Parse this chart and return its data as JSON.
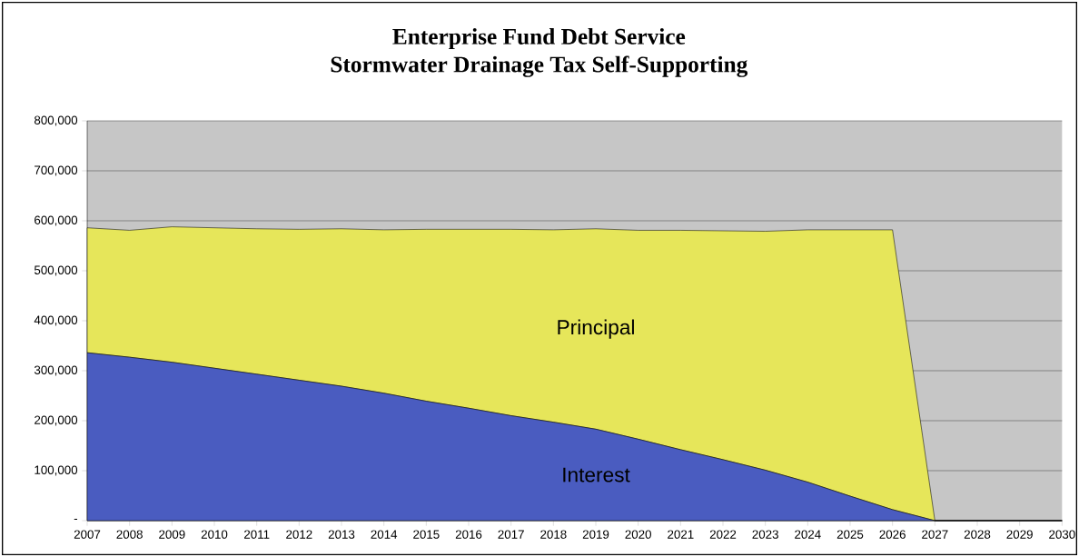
{
  "chart_data": {
    "type": "area",
    "stacked": true,
    "title": "Enterprise Fund Debt Service",
    "subtitle": "Stormwater Drainage Tax Self-Supporting",
    "categories": [
      "2007",
      "2008",
      "2009",
      "2010",
      "2011",
      "2012",
      "2013",
      "2014",
      "2015",
      "2016",
      "2017",
      "2018",
      "2019",
      "2020",
      "2021",
      "2022",
      "2023",
      "2024",
      "2025",
      "2026",
      "2027",
      "2028",
      "2029",
      "2030"
    ],
    "series": [
      {
        "name": "Interest",
        "color": "#4a5cc0",
        "values": [
          336000,
          327000,
          317000,
          305000,
          293000,
          281000,
          269000,
          255000,
          239000,
          225000,
          210000,
          197000,
          183000,
          163000,
          142000,
          122000,
          101000,
          77000,
          49000,
          22000,
          0,
          0,
          0,
          0
        ]
      },
      {
        "name": "Principal",
        "color": "#e6e65a",
        "values": [
          250000,
          254000,
          271000,
          281000,
          291000,
          302000,
          315000,
          327000,
          344000,
          358000,
          373000,
          385000,
          401000,
          418000,
          439000,
          458000,
          478000,
          505000,
          533000,
          560000,
          0,
          0,
          0,
          0
        ]
      }
    ],
    "ylim": [
      0,
      800000
    ],
    "yticks": [
      {
        "value": 0,
        "label": "-"
      },
      {
        "value": 100000,
        "label": "100,000"
      },
      {
        "value": 200000,
        "label": "200,000"
      },
      {
        "value": 300000,
        "label": "300,000"
      },
      {
        "value": 400000,
        "label": "400,000"
      },
      {
        "value": 500000,
        "label": "500,000"
      },
      {
        "value": 600000,
        "label": "600,000"
      },
      {
        "value": 700000,
        "label": "700,000"
      },
      {
        "value": 800000,
        "label": "800,000"
      }
    ],
    "grid": "y"
  }
}
